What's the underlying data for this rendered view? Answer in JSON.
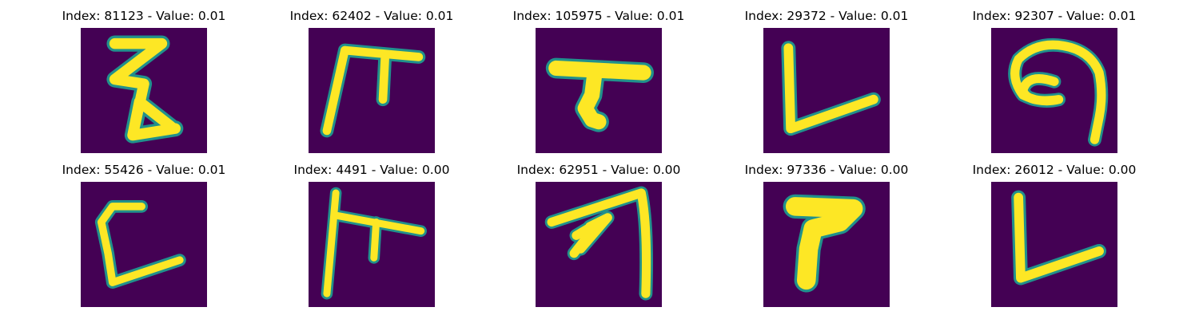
{
  "panels": [
    {
      "title": "Index: 81123 - Value: 0.01",
      "glyph": "zigzag-stroke-glyph"
    },
    {
      "title": "Index: 62402 - Value: 0.01",
      "glyph": "pi-like-stroke-glyph"
    },
    {
      "title": "Index: 105975 - Value: 0.01",
      "glyph": "t-hook-stroke-glyph"
    },
    {
      "title": "Index: 29372 - Value: 0.01",
      "glyph": "l-shape-stroke-glyph"
    },
    {
      "title": "Index: 92307 - Value: 0.01",
      "glyph": "spiral-stroke-glyph"
    },
    {
      "title": "Index: 55426 - Value: 0.01",
      "glyph": "c-l-shape-stroke-glyph"
    },
    {
      "title": "Index: 4491 - Value: 0.00",
      "glyph": "double-bar-stroke-glyph"
    },
    {
      "title": "Index: 62951 - Value: 0.00",
      "glyph": "arch-stroke-glyph"
    },
    {
      "title": "Index: 97336 - Value: 0.00",
      "glyph": "thick-seven-stroke-glyph"
    },
    {
      "title": "Index: 26012 - Value: 0.00",
      "glyph": "v-l-shape-stroke-glyph"
    }
  ],
  "colors": {
    "background": "#440154",
    "edge": "#21918c",
    "stroke": "#fde725"
  }
}
